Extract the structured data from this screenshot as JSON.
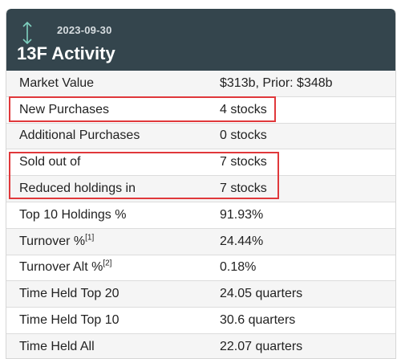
{
  "header": {
    "date": "2023-09-30",
    "title": "13F Activity",
    "icon": "up-down-arrows-icon",
    "icon_color": "#7fd0bf"
  },
  "rows": [
    {
      "label": "Market Value",
      "sup": "",
      "value": "$313b, Prior: $348b"
    },
    {
      "label": "New Purchases",
      "sup": "",
      "value": "4 stocks"
    },
    {
      "label": "Additional Purchases",
      "sup": "",
      "value": "0 stocks"
    },
    {
      "label": "Sold out of",
      "sup": "",
      "value": "7 stocks"
    },
    {
      "label": "Reduced holdings in",
      "sup": "",
      "value": "7 stocks"
    },
    {
      "label": "Top 10 Holdings %",
      "sup": "",
      "value": "91.93%"
    },
    {
      "label": "Turnover %",
      "sup": "[1]",
      "value": "24.44%"
    },
    {
      "label": "Turnover Alt %",
      "sup": "[2]",
      "value": "0.18%"
    },
    {
      "label": "Time Held Top 20",
      "sup": "",
      "value": "24.05 quarters"
    },
    {
      "label": "Time Held Top 10",
      "sup": "",
      "value": "30.6 quarters"
    },
    {
      "label": "Time Held All",
      "sup": "",
      "value": "22.07 quarters"
    }
  ],
  "highlight_color": "#e0383b"
}
